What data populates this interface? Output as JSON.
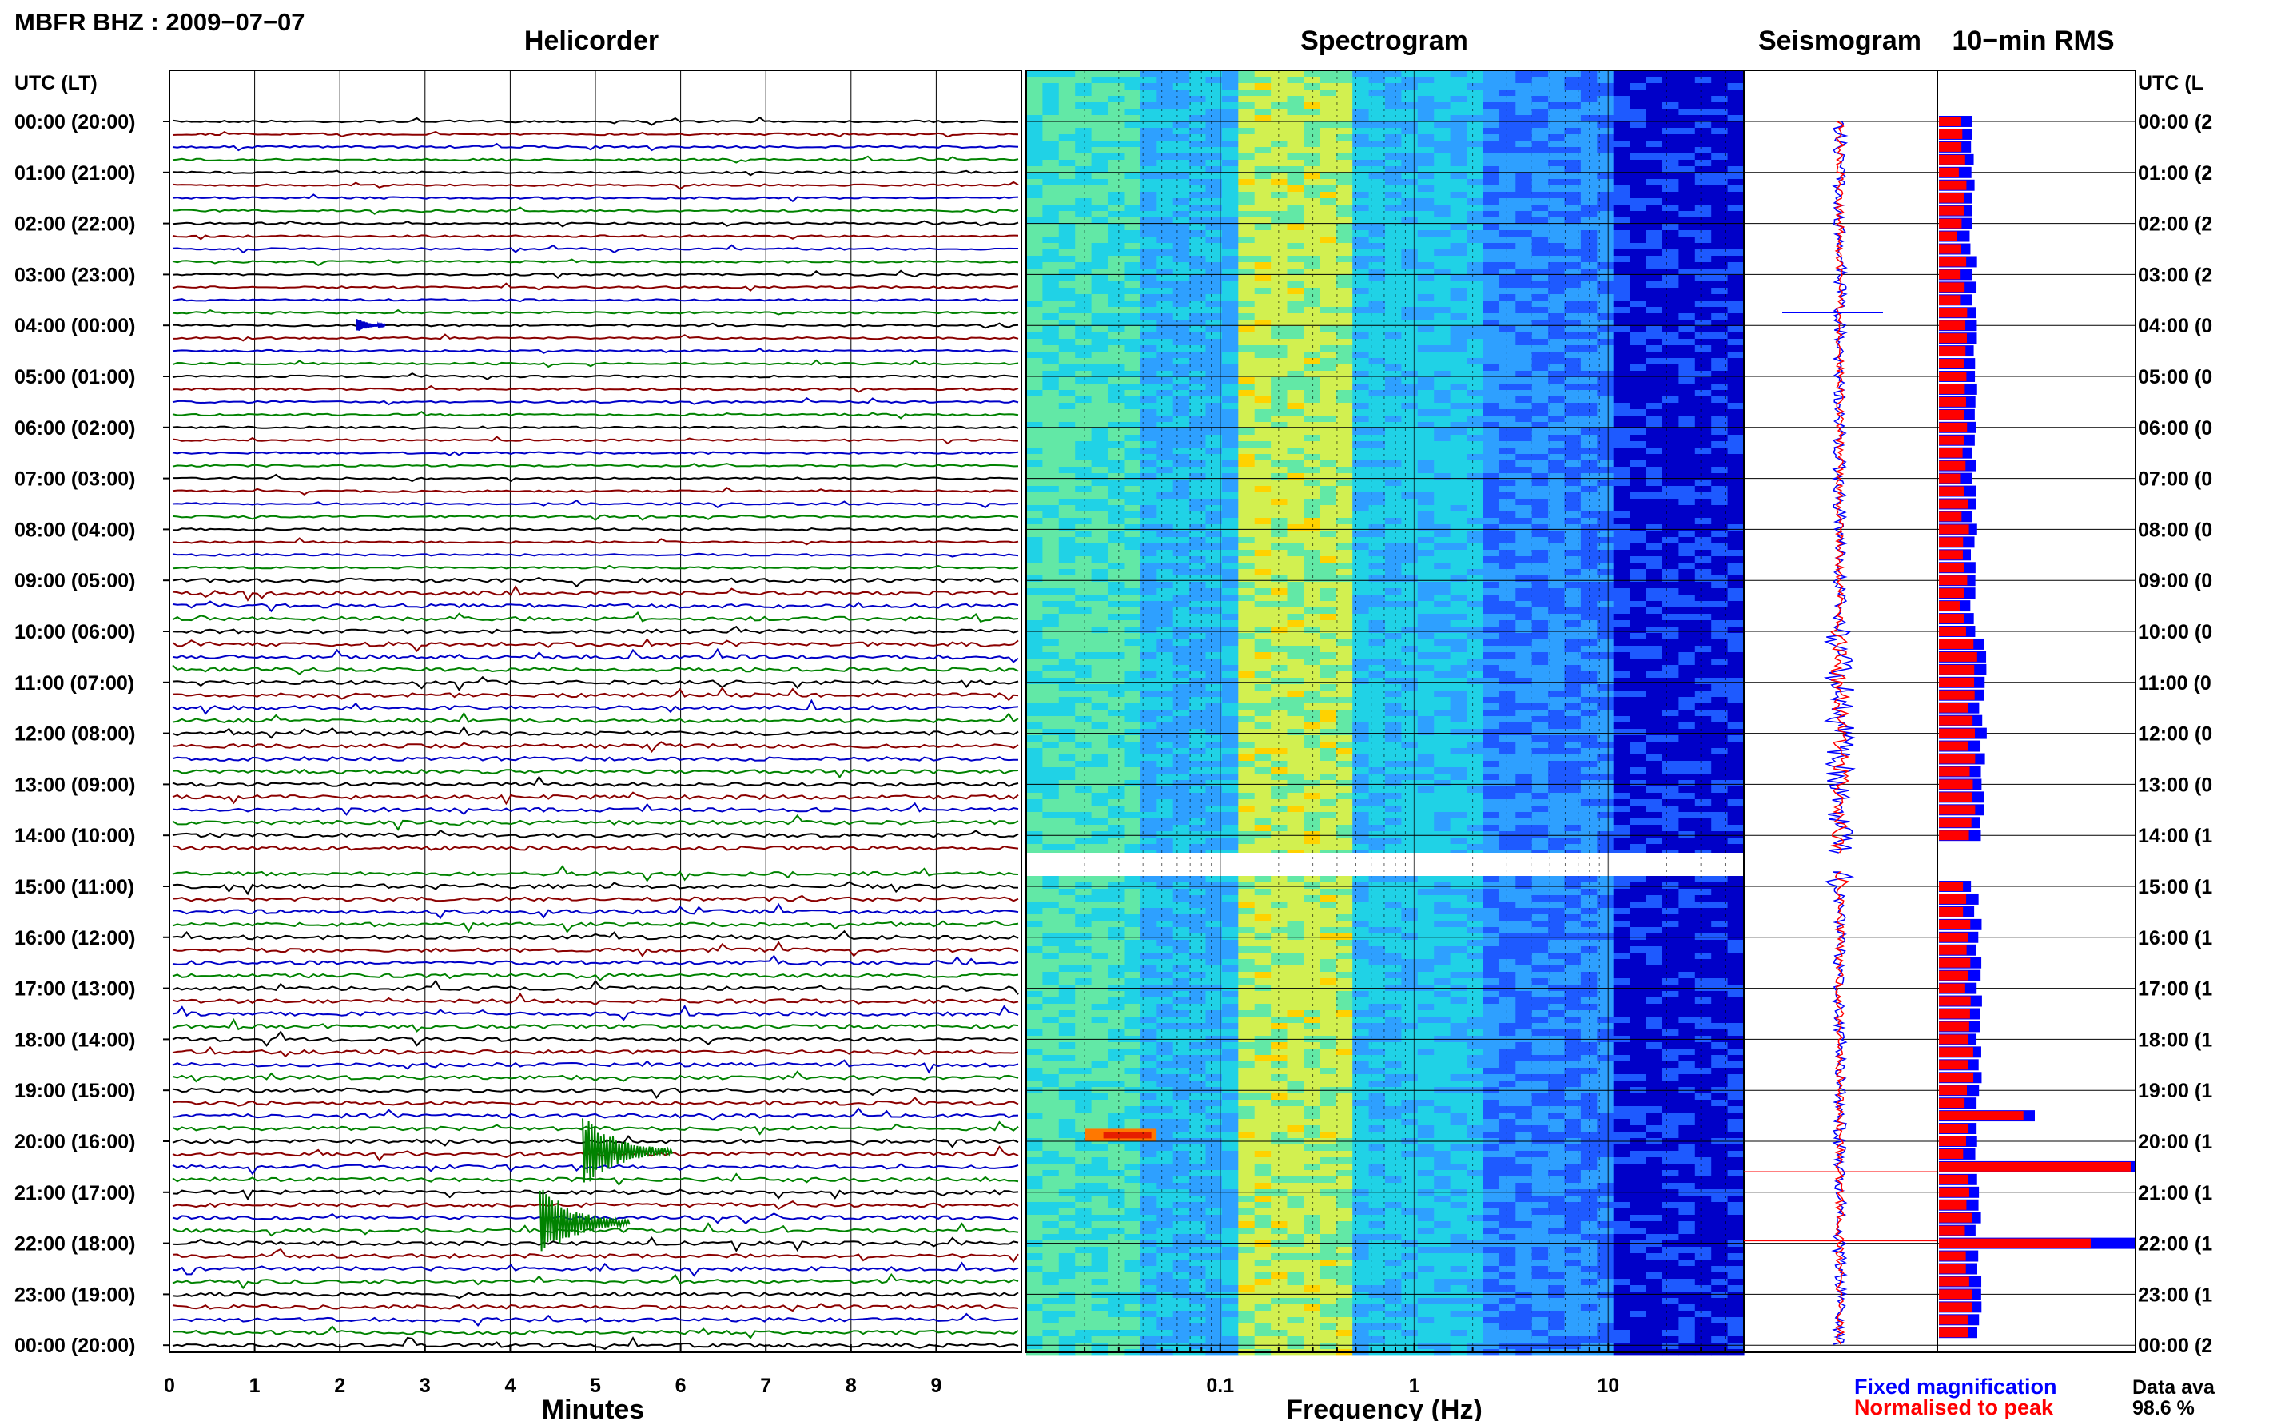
{
  "header": {
    "title": "MBFR BHZ : 2009−07−07"
  },
  "chart_data": [
    {
      "type": "line",
      "name": "helicorder",
      "title": "Helicorder",
      "xlabel": "Minutes",
      "xlim": [
        0,
        10
      ],
      "xticks": [
        "0",
        "1",
        "2",
        "3",
        "4",
        "5",
        "6",
        "7",
        "8",
        "9"
      ],
      "y_header": "UTC (LT)",
      "time_labels": [
        "00:00 (20:00)",
        "01:00 (21:00)",
        "02:00 (22:00)",
        "03:00 (23:00)",
        "04:00 (00:00)",
        "05:00 (01:00)",
        "06:00 (02:00)",
        "07:00 (03:00)",
        "08:00 (04:00)",
        "09:00 (05:00)",
        "10:00 (06:00)",
        "11:00 (07:00)",
        "12:00 (08:00)",
        "13:00 (09:00)",
        "14:00 (10:00)",
        "15:00 (11:00)",
        "16:00 (12:00)",
        "17:00 (13:00)",
        "18:00 (14:00)",
        "19:00 (15:00)",
        "20:00 (16:00)",
        "21:00 (17:00)",
        "22:00 (18:00)",
        "23:00 (19:00)",
        "00:00 (20:00)"
      ],
      "trace_colors": [
        "#000000",
        "#8b0000",
        "#0000c8",
        "#008200"
      ],
      "data_gap_utc": "15:00",
      "events": [
        {
          "utc_hour": 4.0,
          "minute": 2.2,
          "color": "#0000c8",
          "size": "small"
        },
        {
          "utc_hour": 20.2,
          "minute": 4.85,
          "color": "#008200",
          "size": "large"
        },
        {
          "utc_hour": 21.6,
          "minute": 4.35,
          "color": "#008200",
          "size": "large"
        }
      ]
    },
    {
      "type": "heatmap",
      "name": "spectrogram",
      "title": "Spectrogram",
      "xlabel": "Frequency (Hz)",
      "xscale": "log",
      "xlim": [
        0.01,
        50
      ],
      "xticks": [
        "0.1",
        "1",
        "10"
      ],
      "colormap": [
        "#00008c",
        "#0000c8",
        "#1e5aff",
        "#2ea0ff",
        "#20d2e6",
        "#62e8a6",
        "#d2f050",
        "#ffd200",
        "#ff7800",
        "#e61e00"
      ]
    },
    {
      "type": "line",
      "name": "seismogram",
      "title": "Seismogram",
      "series": [
        {
          "name": "Fixed magnification",
          "color": "#0000ff"
        },
        {
          "name": "Normalised to peak",
          "color": "#ff0000"
        }
      ]
    },
    {
      "type": "bar",
      "name": "rms",
      "title": "10−min RMS",
      "orientation": "horizontal",
      "series": [
        {
          "name": "Fixed magnification",
          "color": "#0000ff"
        },
        {
          "name": "Normalised to peak",
          "color": "#ff0000"
        }
      ],
      "right_axis_header": "UTC (L",
      "right_axis_labels": [
        "00:00 (2",
        "01:00 (2",
        "02:00 (2",
        "03:00 (2",
        "04:00 (0",
        "05:00 (0",
        "06:00 (0",
        "07:00 (0",
        "08:00 (0",
        "09:00 (0",
        "10:00 (0",
        "11:00 (0",
        "12:00 (0",
        "13:00 (0",
        "14:00 (1",
        "15:00 (1",
        "16:00 (1",
        "17:00 (1",
        "18:00 (1",
        "19:00 (1",
        "20:00 (1",
        "21:00 (1",
        "22:00 (1",
        "23:00 (1",
        "00:00 (2"
      ]
    }
  ],
  "legend": {
    "fixed_label": "Fixed magnification",
    "normalised_label": "Normalised to peak",
    "fixed_color": "#0000ff",
    "normalised_color": "#ff0000"
  },
  "data_availability": {
    "label": "Data ava",
    "value": "98.6 %"
  }
}
